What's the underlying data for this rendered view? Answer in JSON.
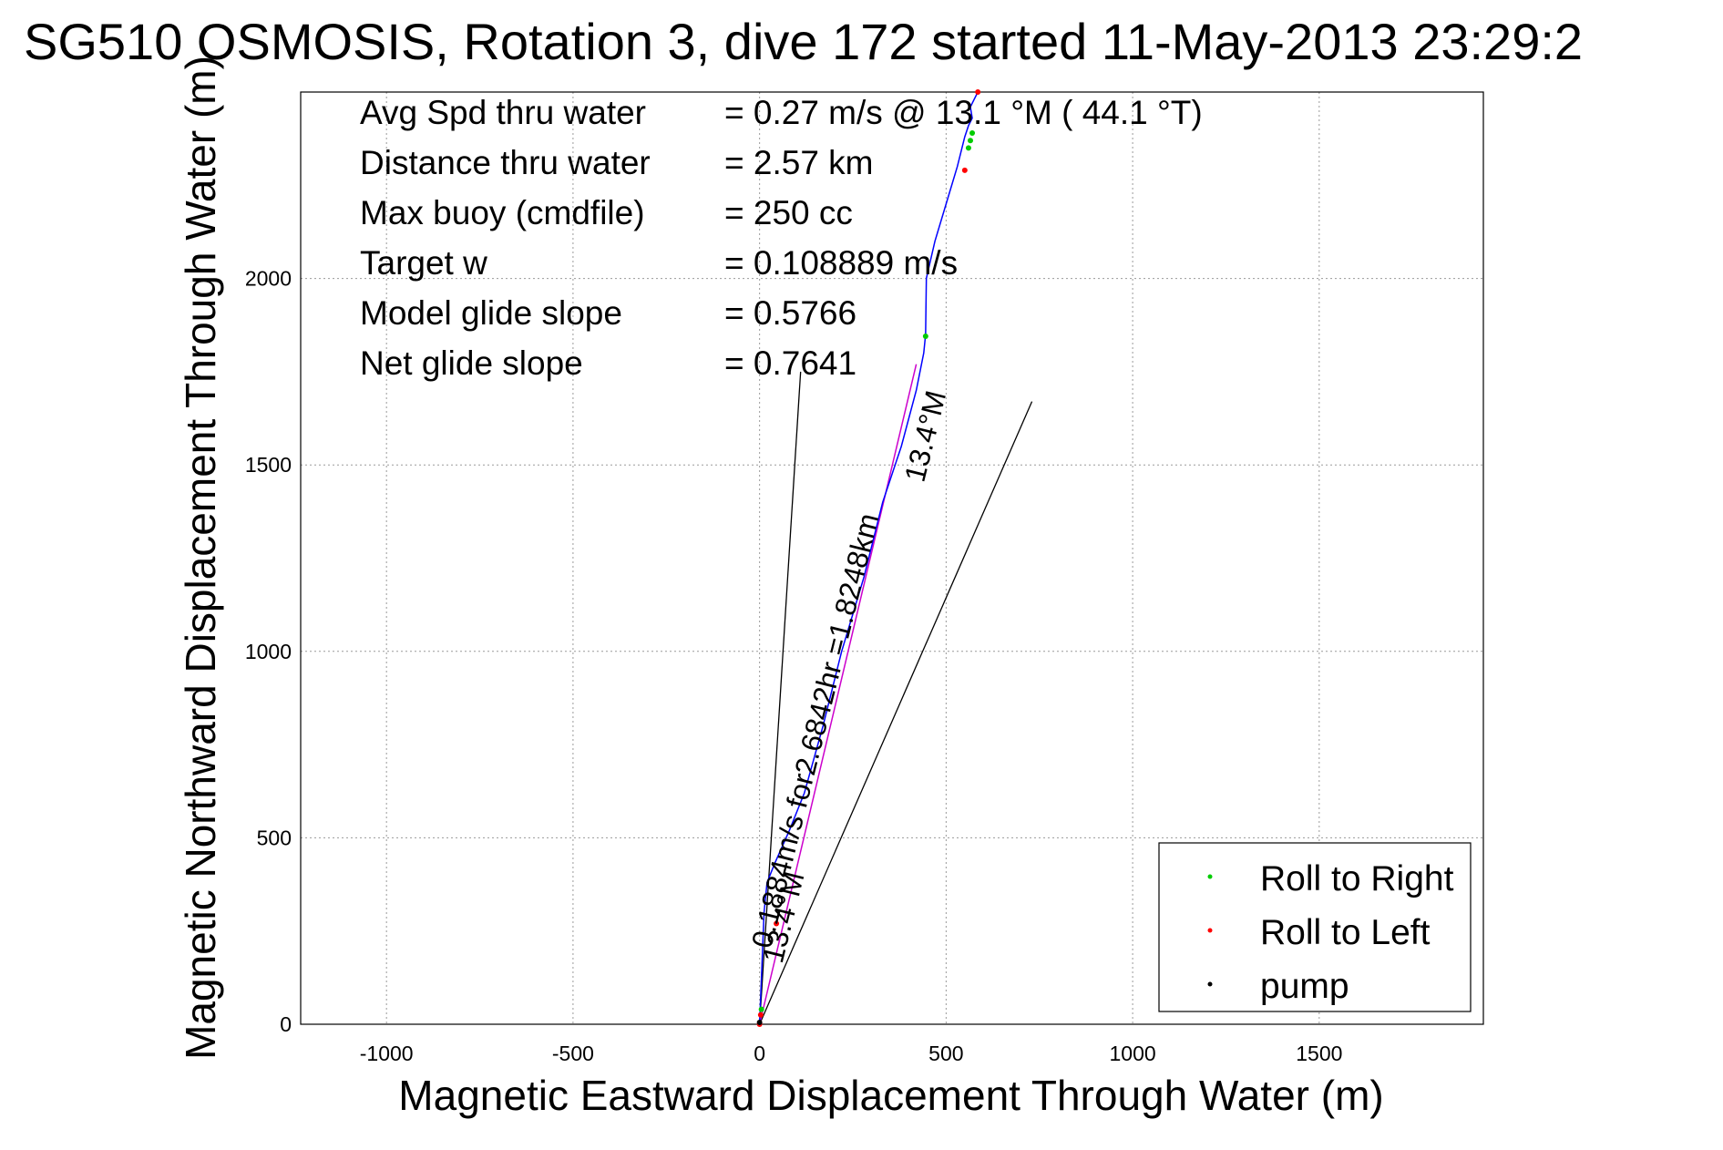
{
  "chart_data": {
    "type": "line",
    "title": "SG510 OSMOSIS, Rotation 3, dive 172 started 11-May-2013 23:29:2",
    "xlabel": "Magnetic Eastward Displacement Through Water (m)",
    "ylabel": "Magnetic Northward Displacement Through Water (m)",
    "xlim": [
      -1230,
      1940
    ],
    "ylim": [
      0,
      2500
    ],
    "xticks": [
      -1000,
      -500,
      0,
      500,
      1000,
      1500
    ],
    "yticks": [
      0,
      500,
      1000,
      1500,
      2000
    ],
    "grid": true,
    "legend_position": "bottom-right",
    "stats": [
      {
        "label": "Avg Spd thru water",
        "value": "=  0.27 m/s @  13.1 °M ( 44.1 °T)"
      },
      {
        "label": "Distance thru water",
        "value": "=  2.57 km"
      },
      {
        "label": "Max buoy (cmdfile)",
        "value": "= 250 cc"
      },
      {
        "label": "Target w",
        "value": "= 0.108889 m/s"
      },
      {
        "label": "Model glide slope",
        "value": "= 0.5766"
      },
      {
        "label": "Net glide slope",
        "value": "= 0.7641"
      }
    ],
    "track": {
      "color": "#0000ff",
      "x": [
        0,
        4,
        8,
        12,
        20,
        40,
        80,
        120,
        170,
        220,
        280,
        330,
        380,
        420,
        440,
        445,
        447,
        470,
        500,
        530,
        550,
        560,
        570,
        565,
        575,
        585
      ],
      "y": [
        0,
        100,
        200,
        300,
        380,
        430,
        520,
        620,
        800,
        1000,
        1200,
        1400,
        1550,
        1700,
        1800,
        1850,
        2000,
        2100,
        2200,
        2300,
        2380,
        2410,
        2430,
        2460,
        2480,
        2500
      ]
    },
    "model_track": {
      "color": "#cc00cc",
      "x": [
        0,
        420
      ],
      "y": [
        0,
        1770
      ]
    },
    "reference_lines": [
      {
        "x": [
          0,
          110
        ],
        "y": [
          0,
          1750
        ]
      },
      {
        "x": [
          0,
          730
        ],
        "y": [
          0,
          1670
        ]
      }
    ],
    "legend": [
      {
        "label": "Roll to Right",
        "color": "#00cc00"
      },
      {
        "label": "Roll to Left",
        "color": "#ff0000"
      },
      {
        "label": "pump",
        "color": "#000000"
      }
    ],
    "roll_right_points": {
      "x": [
        5,
        445,
        560,
        565,
        570
      ],
      "y": [
        40,
        1845,
        2350,
        2370,
        2390
      ]
    },
    "roll_left_points": {
      "x": [
        0,
        3,
        45,
        550,
        585
      ],
      "y": [
        0,
        25,
        270,
        2290,
        2500
      ]
    },
    "pump_points": {
      "x": [
        0
      ],
      "y": [
        5
      ]
    },
    "annotations": [
      {
        "text": "0.1884m/s for2.6842hr =1.8248km",
        "x": 30,
        "y": 200,
        "angle": -76
      },
      {
        "text": "13.4°M",
        "x": 60,
        "y": 160,
        "angle": -76
      },
      {
        "text": "13.4°M",
        "x": 440,
        "y": 1450,
        "angle": -76
      }
    ]
  }
}
